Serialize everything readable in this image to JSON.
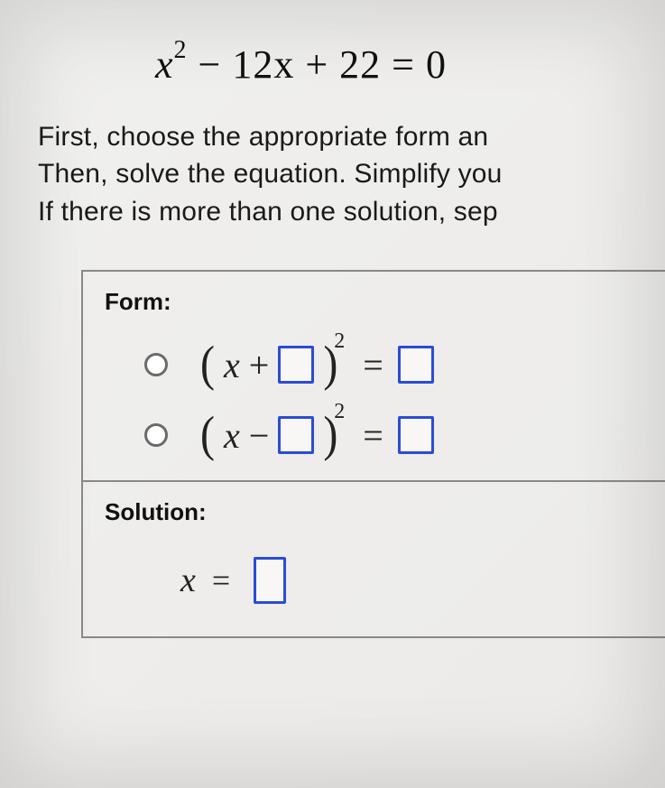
{
  "equation": {
    "variable": "x",
    "exponent": "2",
    "middle": "− 12x + 22 ",
    "equals": "= 0"
  },
  "instructions": {
    "line1": "First, choose the appropriate form an",
    "line2": "Then, solve the equation. Simplify you",
    "line3": "If there is more than one solution, sep"
  },
  "form": {
    "label": "Form:",
    "options": [
      {
        "operator": "+",
        "variable": "x",
        "exponent": "2",
        "equals": "="
      },
      {
        "operator": "−",
        "variable": "x",
        "exponent": "2",
        "equals": "="
      }
    ]
  },
  "solution": {
    "label": "Solution:",
    "variable": "x",
    "equals": "="
  },
  "styles": {
    "input_border_color": "#2a4cd6",
    "box_border_color": "#8a8988",
    "text_color": "#1a1a1a"
  }
}
